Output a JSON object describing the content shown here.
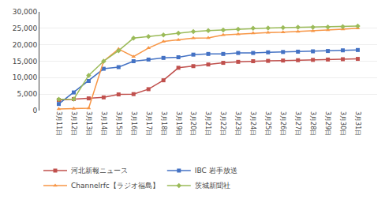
{
  "chart_data": {
    "type": "line",
    "categories": [
      "3月11日",
      "3月12日",
      "3月13日",
      "3月14日",
      "3月15日",
      "3月16日",
      "3月17日",
      "3月18日",
      "3月19日",
      "3月20日",
      "3月21日",
      "3月22日",
      "3月23日",
      "3月24日",
      "3月25日",
      "3月26日",
      "3月27日",
      "3月28日",
      "3月29日",
      "3月30日",
      "3月31日"
    ],
    "series": [
      {
        "name": "河北新報ニュース",
        "color": "#c0504d",
        "marker": "square",
        "values": [
          3200,
          3500,
          3700,
          4000,
          4900,
          5000,
          6500,
          9200,
          13000,
          13500,
          14000,
          14500,
          14800,
          15000,
          15100,
          15200,
          15300,
          15400,
          15500,
          15600,
          15700
        ]
      },
      {
        "name": "IBC 岩手放送",
        "color": "#4472c4",
        "marker": "square",
        "values": [
          2000,
          5500,
          9000,
          12700,
          13200,
          15000,
          15500,
          16000,
          16200,
          17000,
          17200,
          17200,
          17500,
          17500,
          17700,
          17800,
          17900,
          18000,
          18100,
          18300,
          18400
        ]
      },
      {
        "name": "Channelrfc【ラジオ福島】",
        "color": "#f79646",
        "marker": "triangle-up",
        "values": [
          500,
          600,
          700,
          15000,
          18700,
          16400,
          19000,
          21000,
          21500,
          22000,
          22100,
          23000,
          23200,
          23500,
          23700,
          23800,
          24000,
          24200,
          24500,
          24700,
          25000
        ]
      },
      {
        "name": "茨城新聞社",
        "color": "#9bbb59",
        "marker": "diamond",
        "values": [
          3400,
          3500,
          10700,
          15000,
          18200,
          22000,
          22500,
          23000,
          23500,
          24000,
          24300,
          24500,
          24700,
          25000,
          25100,
          25200,
          25300,
          25300,
          25400,
          25500,
          25700
        ]
      }
    ],
    "ylim": [
      0,
      30000
    ],
    "yticks": [
      0,
      {
        "value": 5000,
        "label": "5,000"
      },
      {
        "value": 10000,
        "label": "10,000"
      },
      {
        "value": 15000,
        "label": "15,000"
      },
      {
        "value": 20000,
        "label": "20,000"
      },
      {
        "value": 25000,
        "label": "25,000"
      },
      {
        "value": 30000,
        "label": "30,000"
      }
    ],
    "grid": true,
    "legend": "bottom"
  }
}
